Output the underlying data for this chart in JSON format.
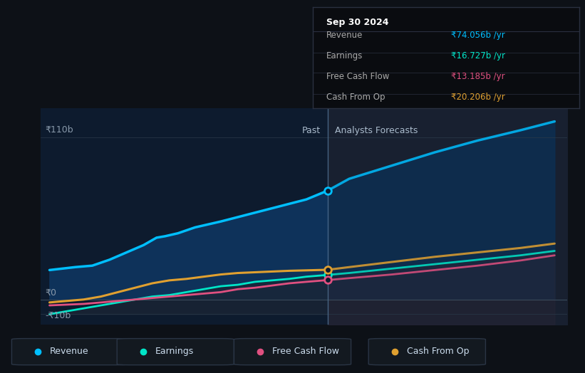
{
  "bg_color": "#0d1117",
  "plot_bg_color": "#0d1b2e",
  "divider_x": 2024.75,
  "x_ticks": [
    2022,
    2023,
    2024,
    2025,
    2026,
    2027
  ],
  "y_labels": [
    "-₹10b",
    "₹0",
    "₹110b"
  ],
  "ylim": [
    -17,
    130
  ],
  "xlim": [
    2021.4,
    2027.55
  ],
  "past_label": "Past",
  "forecast_label": "Analysts Forecasts",
  "tooltip_title": "Sep 30 2024",
  "tooltip_items": [
    {
      "label": "Revenue",
      "value": "₹74.056b /yr",
      "color": "#00bfff"
    },
    {
      "label": "Earnings",
      "value": "₹16.727b /yr",
      "color": "#00e5c8"
    },
    {
      "label": "Free Cash Flow",
      "value": "₹13.185b /yr",
      "color": "#e05080"
    },
    {
      "label": "Cash From Op",
      "value": "₹20.206b /yr",
      "color": "#e0a030"
    }
  ],
  "revenue": {
    "x_past": [
      2021.5,
      2021.65,
      2021.8,
      2022.0,
      2022.2,
      2022.4,
      2022.6,
      2022.75,
      2022.85,
      2023.0,
      2023.2,
      2023.5,
      2023.7,
      2023.9,
      2024.1,
      2024.3,
      2024.5,
      2024.75
    ],
    "y_past": [
      20,
      21,
      22,
      23,
      27,
      32,
      37,
      42,
      43,
      45,
      49,
      53,
      56,
      59,
      62,
      65,
      68,
      74
    ],
    "x_forecast": [
      2024.75,
      2025.0,
      2025.5,
      2026.0,
      2026.5,
      2027.0,
      2027.4
    ],
    "y_forecast": [
      74,
      82,
      91,
      100,
      108,
      115,
      121
    ],
    "color": "#00bfff",
    "marker_x": 2024.75,
    "marker_y": 74
  },
  "earnings": {
    "x_past": [
      2021.5,
      2021.7,
      2021.9,
      2022.1,
      2022.3,
      2022.5,
      2022.7,
      2022.9,
      2023.1,
      2023.3,
      2023.5,
      2023.7,
      2023.9,
      2024.1,
      2024.3,
      2024.5,
      2024.75
    ],
    "y_past": [
      -10,
      -8,
      -6,
      -4,
      -2,
      0,
      2,
      3,
      5,
      7,
      9,
      10,
      12,
      13,
      14,
      15.5,
      16.7
    ],
    "x_forecast": [
      2024.75,
      2025.0,
      2025.5,
      2026.0,
      2026.5,
      2027.0,
      2027.4
    ],
    "y_forecast": [
      16.7,
      18,
      21,
      24,
      27,
      30,
      33
    ],
    "color": "#00e5c8",
    "marker_x": 2024.75,
    "marker_y": 16.7
  },
  "free_cash_flow": {
    "x_past": [
      2021.5,
      2021.7,
      2021.9,
      2022.1,
      2022.3,
      2022.5,
      2022.7,
      2022.9,
      2023.1,
      2023.3,
      2023.5,
      2023.7,
      2023.9,
      2024.1,
      2024.3,
      2024.5,
      2024.75
    ],
    "y_past": [
      -4,
      -3.5,
      -3,
      -2,
      -1,
      0,
      1,
      2,
      3,
      4,
      5,
      7,
      8,
      9.5,
      11,
      12,
      13.2
    ],
    "x_forecast": [
      2024.75,
      2025.0,
      2025.5,
      2026.0,
      2026.5,
      2027.0,
      2027.4
    ],
    "y_forecast": [
      13.2,
      14.5,
      17,
      20,
      23,
      26.5,
      30
    ],
    "color": "#e05080",
    "marker_x": 2024.75,
    "marker_y": 13.2
  },
  "cash_from_op": {
    "x_past": [
      2021.5,
      2021.7,
      2021.9,
      2022.1,
      2022.3,
      2022.5,
      2022.7,
      2022.9,
      2023.1,
      2023.3,
      2023.5,
      2023.7,
      2023.9,
      2024.1,
      2024.3,
      2024.5,
      2024.75
    ],
    "y_past": [
      -2,
      -1,
      0,
      2,
      5,
      8,
      11,
      13,
      14,
      15.5,
      17,
      18,
      18.5,
      19,
      19.5,
      19.8,
      20.2
    ],
    "x_forecast": [
      2024.75,
      2025.0,
      2025.5,
      2026.0,
      2026.5,
      2027.0,
      2027.4
    ],
    "y_forecast": [
      20.2,
      22,
      25.5,
      29,
      32,
      35,
      38
    ],
    "color": "#e0a030",
    "marker_x": 2024.75,
    "marker_y": 20.2
  },
  "legend_items": [
    {
      "label": "Revenue",
      "color": "#00bfff"
    },
    {
      "label": "Earnings",
      "color": "#00e5c8"
    },
    {
      "label": "Free Cash Flow",
      "color": "#e05080"
    },
    {
      "label": "Cash From Op",
      "color": "#e0a030"
    }
  ],
  "tooltip_bg": "#0a0c10",
  "tooltip_border": "#2a3040",
  "line_color": "#2a3a4a"
}
